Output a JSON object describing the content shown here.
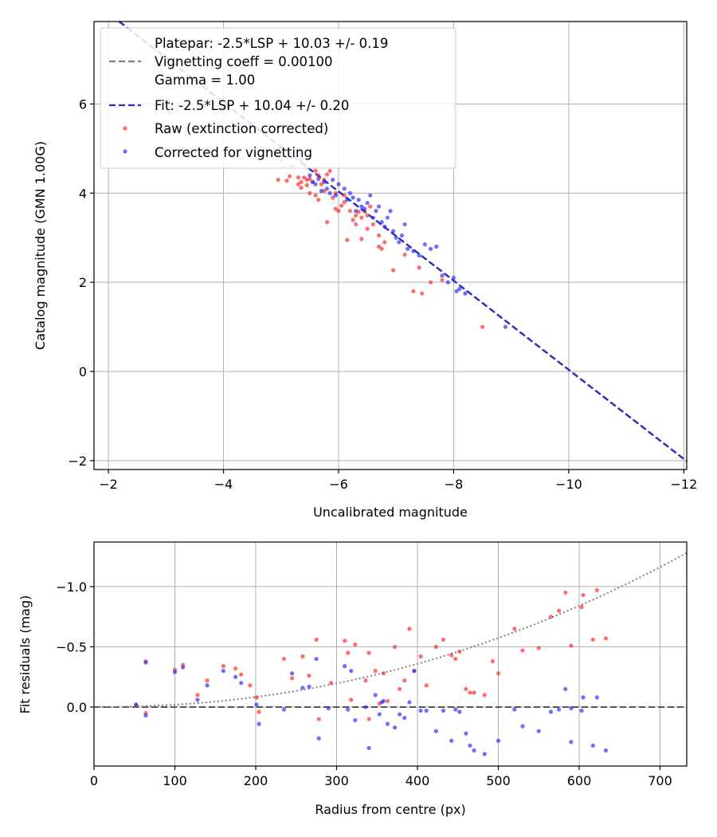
{
  "chart_data": [
    {
      "type": "scatter",
      "id": "top",
      "xlabel": "Uncalibrated magnitude",
      "ylabel": "Catalog magnitude (GMN 1.00G)",
      "xlim": [
        -1.75,
        -12.05
      ],
      "ylim": [
        7.85,
        -2.2
      ],
      "xticks": [
        -2,
        -4,
        -6,
        -8,
        -10,
        -12
      ],
      "yticks": [
        -2,
        0,
        2,
        4,
        6
      ],
      "xtick_labels": [
        "−2",
        "−4",
        "−6",
        "−8",
        "−10",
        "−12"
      ],
      "ytick_labels": [
        "−2",
        "0",
        "2",
        "4",
        "6"
      ],
      "grid": true,
      "legend_position": "upper-left",
      "lines": [
        {
          "name": "platepar",
          "label_lines": [
            "Platepar: -2.5*LSP + 10.03 +/- 0.19",
            "Vignetting coeff = 0.00100",
            "Gamma = 1.00"
          ],
          "color": "#808080",
          "slope": 1,
          "intercept": 10.03
        },
        {
          "name": "fit",
          "label_lines": [
            "Fit: -2.5*LSP + 10.04 +/- 0.20"
          ],
          "color": "#2b2bd0",
          "slope": 1,
          "intercept": 10.04
        }
      ],
      "series": [
        {
          "name": "Raw (extinction corrected)",
          "color": "#ff2020",
          "points": [
            [
              -4.95,
              4.3
            ],
            [
              -5.0,
              4.73
            ],
            [
              -5.1,
              4.28
            ],
            [
              -5.15,
              4.38
            ],
            [
              -5.2,
              4.6
            ],
            [
              -5.3,
              4.2
            ],
            [
              -5.3,
              4.35
            ],
            [
              -5.35,
              4.25
            ],
            [
              -5.35,
              4.12
            ],
            [
              -5.4,
              4.35
            ],
            [
              -5.45,
              4.18
            ],
            [
              -5.45,
              4.3
            ],
            [
              -5.5,
              4.32
            ],
            [
              -5.5,
              4.0
            ],
            [
              -5.55,
              4.25
            ],
            [
              -5.6,
              3.95
            ],
            [
              -5.6,
              4.5
            ],
            [
              -5.65,
              3.85
            ],
            [
              -5.65,
              4.4
            ],
            [
              -5.7,
              4.2
            ],
            [
              -5.75,
              4.3
            ],
            [
              -5.75,
              4.05
            ],
            [
              -5.8,
              3.35
            ],
            [
              -5.8,
              4.42
            ],
            [
              -5.85,
              4.5
            ],
            [
              -5.9,
              3.9
            ],
            [
              -5.95,
              3.65
            ],
            [
              -5.95,
              4.0
            ],
            [
              -6.0,
              3.6
            ],
            [
              -6.05,
              3.72
            ],
            [
              -6.1,
              3.95
            ],
            [
              -6.1,
              3.8
            ],
            [
              -6.15,
              2.95
            ],
            [
              -6.2,
              3.6
            ],
            [
              -6.25,
              3.4
            ],
            [
              -6.3,
              3.3
            ],
            [
              -6.3,
              3.5
            ],
            [
              -6.35,
              3.58
            ],
            [
              -6.4,
              2.97
            ],
            [
              -6.4,
              3.45
            ],
            [
              -6.45,
              3.6
            ],
            [
              -6.5,
              3.2
            ],
            [
              -6.5,
              3.5
            ],
            [
              -6.55,
              3.7
            ],
            [
              -6.6,
              3.3
            ],
            [
              -6.7,
              3.05
            ],
            [
              -6.7,
              2.8
            ],
            [
              -6.75,
              2.75
            ],
            [
              -6.8,
              2.9
            ],
            [
              -6.95,
              2.27
            ],
            [
              -7.15,
              2.62
            ],
            [
              -7.3,
              1.8
            ],
            [
              -7.4,
              2.33
            ],
            [
              -7.45,
              1.75
            ],
            [
              -7.6,
              2.0
            ],
            [
              -7.8,
              2.05
            ],
            [
              -8.5,
              1.0
            ]
          ]
        },
        {
          "name": "Corrected for vignetting",
          "color": "#2020ff",
          "points": [
            [
              -5.35,
              4.75
            ],
            [
              -5.5,
              4.4
            ],
            [
              -5.55,
              4.25
            ],
            [
              -5.6,
              4.2
            ],
            [
              -5.65,
              4.32
            ],
            [
              -5.7,
              4.05
            ],
            [
              -5.75,
              4.25
            ],
            [
              -5.8,
              4.1
            ],
            [
              -5.85,
              4.0
            ],
            [
              -5.9,
              4.3
            ],
            [
              -5.95,
              3.95
            ],
            [
              -6.0,
              4.2
            ],
            [
              -6.1,
              4.1
            ],
            [
              -6.15,
              3.85
            ],
            [
              -6.2,
              4.0
            ],
            [
              -6.25,
              3.9
            ],
            [
              -6.3,
              3.6
            ],
            [
              -6.35,
              3.85
            ],
            [
              -6.4,
              3.7
            ],
            [
              -6.45,
              3.65
            ],
            [
              -6.5,
              3.78
            ],
            [
              -6.55,
              3.95
            ],
            [
              -6.6,
              3.45
            ],
            [
              -6.65,
              3.6
            ],
            [
              -6.7,
              3.7
            ],
            [
              -6.75,
              3.35
            ],
            [
              -6.8,
              3.25
            ],
            [
              -6.85,
              3.45
            ],
            [
              -6.9,
              3.6
            ],
            [
              -6.95,
              3.15
            ],
            [
              -7.0,
              3.0
            ],
            [
              -7.05,
              2.9
            ],
            [
              -7.1,
              3.05
            ],
            [
              -7.15,
              3.3
            ],
            [
              -7.2,
              2.75
            ],
            [
              -7.3,
              2.7
            ],
            [
              -7.4,
              2.6
            ],
            [
              -7.5,
              2.85
            ],
            [
              -7.6,
              2.75
            ],
            [
              -7.7,
              2.8
            ],
            [
              -7.8,
              2.15
            ],
            [
              -7.9,
              2.0
            ],
            [
              -8.0,
              2.1
            ],
            [
              -8.05,
              1.8
            ],
            [
              -8.1,
              1.85
            ],
            [
              -8.2,
              1.75
            ],
            [
              -8.9,
              1.0
            ]
          ]
        }
      ]
    },
    {
      "type": "scatter",
      "id": "bottom",
      "xlabel": "Radius from centre (px)",
      "ylabel": "Fit residuals (mag)",
      "xlim": [
        0,
        733
      ],
      "ylim": [
        -1.37,
        0.49
      ],
      "xticks": [
        0,
        100,
        200,
        300,
        400,
        500,
        600,
        700
      ],
      "yticks": [
        0.0,
        -0.5,
        -1.0
      ],
      "xtick_labels": [
        "0",
        "100",
        "200",
        "300",
        "400",
        "500",
        "600",
        "700"
      ],
      "ytick_labels": [
        "0.0",
        "−0.5",
        "−1.0"
      ],
      "grid": true,
      "zero_line_color": "#555555",
      "vignetting_curve": {
        "color": "#808080",
        "x_start": 0,
        "x_end": 733,
        "y_at_end": -1.28
      },
      "series": [
        {
          "name": "Raw",
          "color": "#ff2020",
          "points": [
            [
              52,
              -0.02
            ],
            [
              64,
              0.05
            ],
            [
              64,
              -0.38
            ],
            [
              100,
              -0.31
            ],
            [
              110,
              -0.35
            ],
            [
              128,
              -0.1
            ],
            [
              140,
              -0.22
            ],
            [
              160,
              -0.34
            ],
            [
              175,
              -0.32
            ],
            [
              182,
              -0.27
            ],
            [
              193,
              -0.18
            ],
            [
              201,
              -0.08
            ],
            [
              204,
              0.04
            ],
            [
              235,
              -0.4
            ],
            [
              245,
              -0.24
            ],
            [
              258,
              -0.42
            ],
            [
              266,
              -0.26
            ],
            [
              275,
              -0.56
            ],
            [
              278,
              0.1
            ],
            [
              293,
              -0.2
            ],
            [
              310,
              -0.55
            ],
            [
              314,
              -0.45
            ],
            [
              318,
              -0.06
            ],
            [
              323,
              -0.52
            ],
            [
              336,
              -0.22
            ],
            [
              340,
              -0.45
            ],
            [
              340,
              0.1
            ],
            [
              348,
              -0.3
            ],
            [
              353,
              -0.03
            ],
            [
              358,
              -0.28
            ],
            [
              363,
              -0.05
            ],
            [
              372,
              -0.5
            ],
            [
              378,
              -0.15
            ],
            [
              384,
              -0.22
            ],
            [
              390,
              -0.65
            ],
            [
              396,
              -0.3
            ],
            [
              404,
              -0.42
            ],
            [
              411,
              -0.18
            ],
            [
              423,
              -0.5
            ],
            [
              432,
              -0.56
            ],
            [
              442,
              -0.43
            ],
            [
              447,
              -0.4
            ],
            [
              452,
              -0.46
            ],
            [
              460,
              -0.15
            ],
            [
              465,
              -0.12
            ],
            [
              470,
              -0.12
            ],
            [
              483,
              -0.1
            ],
            [
              493,
              -0.38
            ],
            [
              500,
              -0.28
            ],
            [
              520,
              -0.65
            ],
            [
              530,
              -0.47
            ],
            [
              550,
              -0.49
            ],
            [
              565,
              -0.75
            ],
            [
              575,
              -0.8
            ],
            [
              583,
              -0.95
            ],
            [
              590,
              -0.51
            ],
            [
              603,
              -0.83
            ],
            [
              605,
              -0.93
            ],
            [
              617,
              -0.56
            ],
            [
              622,
              -0.97
            ],
            [
              633,
              -0.57
            ]
          ]
        },
        {
          "name": "Corrected",
          "color": "#2020ff",
          "points": [
            [
              52,
              -0.02
            ],
            [
              64,
              0.07
            ],
            [
              64,
              -0.37
            ],
            [
              100,
              -0.29
            ],
            [
              110,
              -0.33
            ],
            [
              128,
              -0.06
            ],
            [
              140,
              -0.18
            ],
            [
              160,
              -0.3
            ],
            [
              175,
              -0.25
            ],
            [
              182,
              -0.2
            ],
            [
              201,
              -0.02
            ],
            [
              204,
              0.14
            ],
            [
              235,
              0.02
            ],
            [
              245,
              -0.28
            ],
            [
              258,
              -0.16
            ],
            [
              266,
              -0.17
            ],
            [
              275,
              -0.4
            ],
            [
              278,
              0.26
            ],
            [
              290,
              0.01
            ],
            [
              310,
              -0.34
            ],
            [
              314,
              0.02
            ],
            [
              318,
              -0.3
            ],
            [
              323,
              0.11
            ],
            [
              336,
              0.0
            ],
            [
              340,
              0.34
            ],
            [
              348,
              -0.1
            ],
            [
              353,
              0.06
            ],
            [
              356,
              -0.04
            ],
            [
              358,
              -0.05
            ],
            [
              363,
              0.14
            ],
            [
              372,
              0.17
            ],
            [
              378,
              0.06
            ],
            [
              384,
              0.09
            ],
            [
              390,
              -0.04
            ],
            [
              396,
              -0.3
            ],
            [
              404,
              0.03
            ],
            [
              411,
              0.03
            ],
            [
              423,
              0.2
            ],
            [
              432,
              0.03
            ],
            [
              442,
              0.28
            ],
            [
              447,
              0.02
            ],
            [
              452,
              0.04
            ],
            [
              460,
              0.22
            ],
            [
              465,
              0.32
            ],
            [
              470,
              0.36
            ],
            [
              483,
              0.39
            ],
            [
              500,
              0.28
            ],
            [
              520,
              0.02
            ],
            [
              530,
              0.16
            ],
            [
              550,
              0.2
            ],
            [
              565,
              0.04
            ],
            [
              575,
              0.02
            ],
            [
              583,
              -0.15
            ],
            [
              590,
              0.01
            ],
            [
              590,
              0.29
            ],
            [
              603,
              0.03
            ],
            [
              605,
              -0.08
            ],
            [
              617,
              0.32
            ],
            [
              622,
              -0.08
            ],
            [
              633,
              0.36
            ]
          ]
        }
      ]
    }
  ]
}
